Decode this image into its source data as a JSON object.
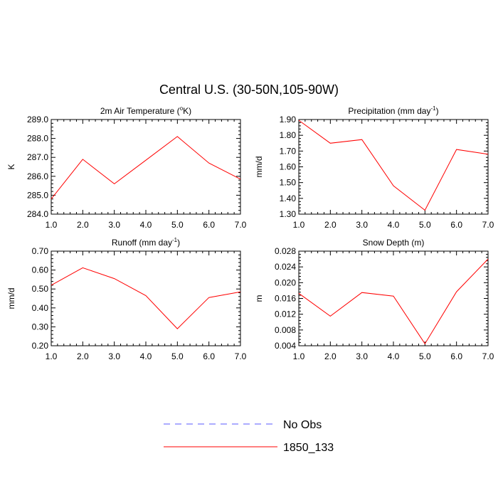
{
  "figure": {
    "title": "Central U.S. (30-50N,105-90W)"
  },
  "legend": {
    "placement": "bottom-center",
    "entries": [
      {
        "label": "No Obs",
        "color": "#5a5aff",
        "style": "dashed"
      },
      {
        "label": "1850_133",
        "color": "#ff0000",
        "style": "solid"
      }
    ]
  },
  "chart_data": [
    {
      "type": "line",
      "title_parts": [
        "2m Air Temperature (",
        "o",
        "K)"
      ],
      "ylabel": "K",
      "x": [
        1,
        2,
        3,
        4,
        5,
        6,
        7
      ],
      "xlim": [
        1,
        7
      ],
      "xticks": [
        "1.0",
        "2.0",
        "3.0",
        "4.0",
        "5.0",
        "6.0",
        "7.0"
      ],
      "ylim": [
        284,
        289
      ],
      "yticks": [
        "284.0",
        "285.0",
        "286.0",
        "287.0",
        "288.0",
        "289.0"
      ],
      "series": [
        {
          "name": "1850_133",
          "color": "#ff0000",
          "values": [
            284.8,
            286.9,
            285.6,
            286.85,
            288.1,
            286.7,
            285.85
          ]
        }
      ]
    },
    {
      "type": "line",
      "title_parts": [
        "Precipitation (mm day",
        "-1",
        ")"
      ],
      "ylabel": "mm/d",
      "x": [
        1,
        2,
        3,
        4,
        5,
        6,
        7
      ],
      "xlim": [
        1,
        7
      ],
      "xticks": [
        "1.0",
        "2.0",
        "3.0",
        "4.0",
        "5.0",
        "6.0",
        "7.0"
      ],
      "ylim": [
        1.3,
        1.9
      ],
      "yticks": [
        "1.30",
        "1.40",
        "1.50",
        "1.60",
        "1.70",
        "1.80",
        "1.90"
      ],
      "series": [
        {
          "name": "1850_133",
          "color": "#ff0000",
          "values": [
            1.895,
            1.75,
            1.773,
            1.48,
            1.325,
            1.71,
            1.68
          ]
        }
      ]
    },
    {
      "type": "line",
      "title_parts": [
        "Runoff (mm day",
        "-1",
        ")"
      ],
      "ylabel": "mm/d",
      "x": [
        1,
        2,
        3,
        4,
        5,
        6,
        7
      ],
      "xlim": [
        1,
        7
      ],
      "xticks": [
        "1.0",
        "2.0",
        "3.0",
        "4.0",
        "5.0",
        "6.0",
        "7.0"
      ],
      "ylim": [
        0.2,
        0.7
      ],
      "yticks": [
        "0.20",
        "0.30",
        "0.40",
        "0.50",
        "0.60",
        "0.70"
      ],
      "series": [
        {
          "name": "1850_133",
          "color": "#ff0000",
          "values": [
            0.52,
            0.612,
            0.555,
            0.465,
            0.29,
            0.455,
            0.485
          ]
        }
      ]
    },
    {
      "type": "line",
      "title_parts": [
        "Snow Depth (m)",
        "",
        ""
      ],
      "ylabel": "m",
      "x": [
        1,
        2,
        3,
        4,
        5,
        6,
        7
      ],
      "xlim": [
        1,
        7
      ],
      "xticks": [
        "1.0",
        "2.0",
        "3.0",
        "4.0",
        "5.0",
        "6.0",
        "7.0"
      ],
      "ylim": [
        0.004,
        0.028
      ],
      "yticks": [
        "0.004",
        "0.008",
        "0.012",
        "0.016",
        "0.020",
        "0.024",
        "0.028"
      ],
      "series": [
        {
          "name": "1850_133",
          "color": "#ff0000",
          "values": [
            0.0173,
            0.0115,
            0.0175,
            0.0166,
            0.0045,
            0.0177,
            0.026
          ]
        }
      ]
    }
  ]
}
